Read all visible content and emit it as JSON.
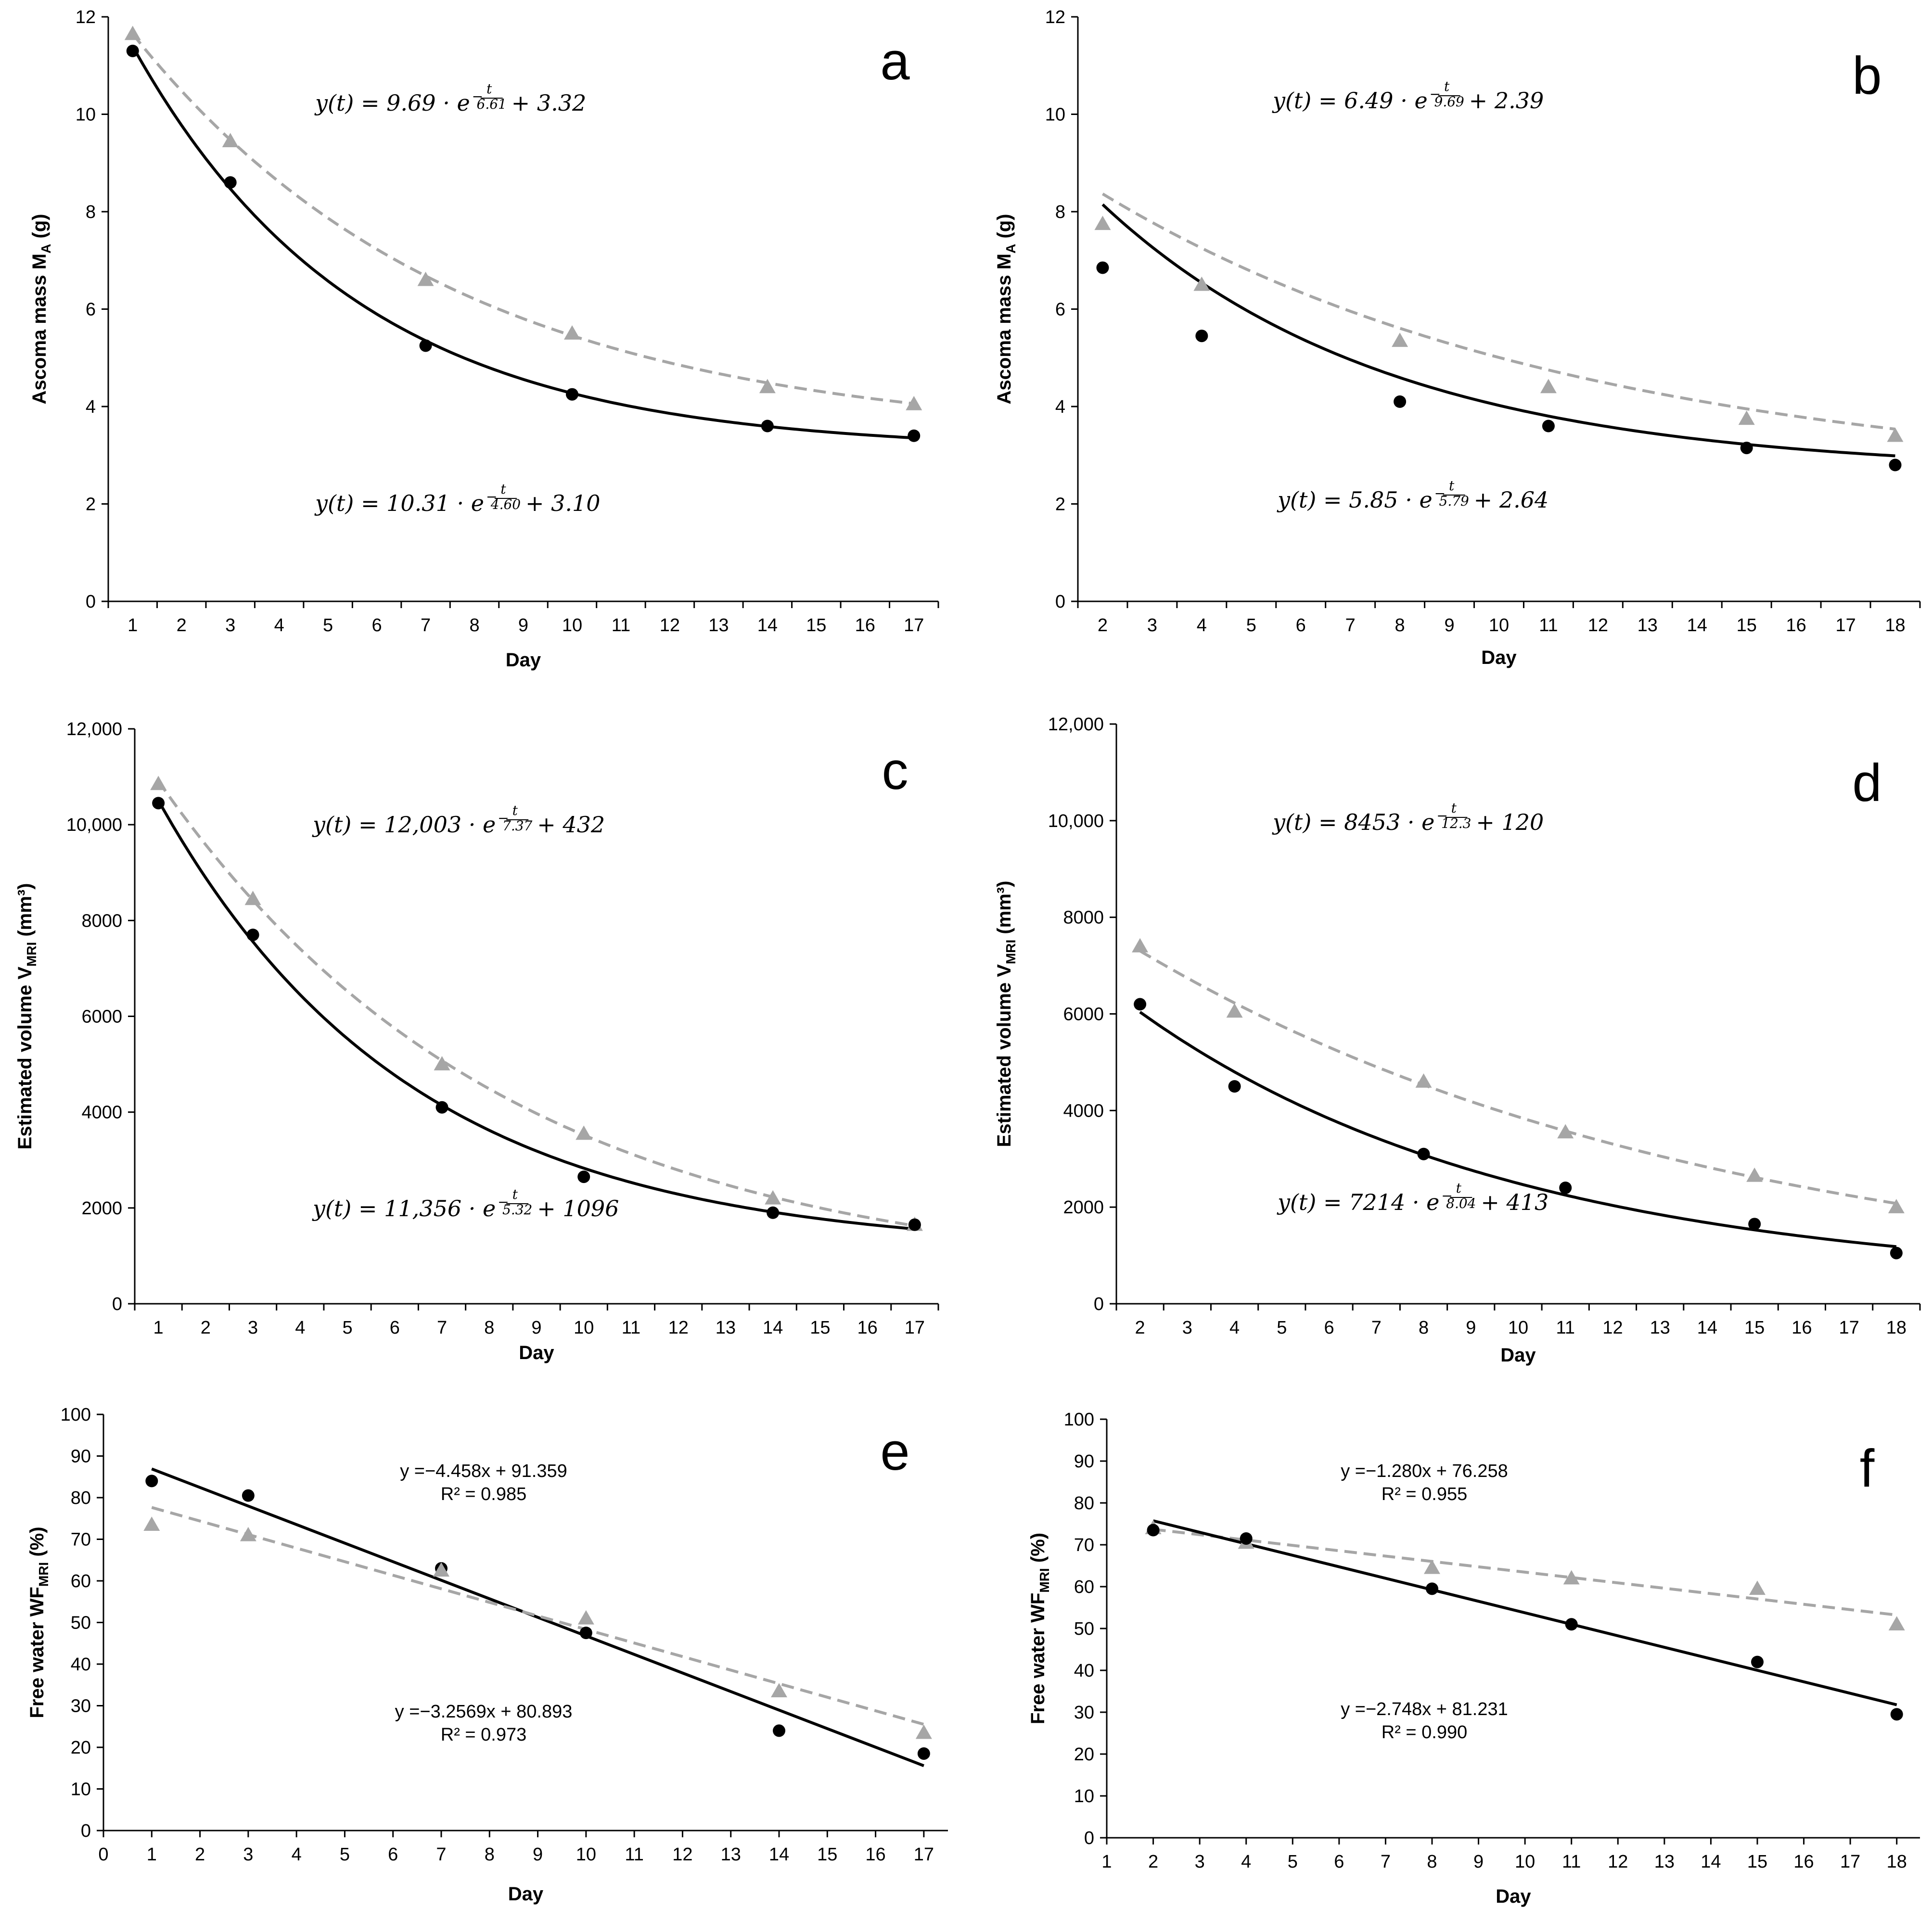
{
  "chart_data": [
    {
      "id": "a",
      "type": "scatter",
      "panel_letter": "a",
      "xlabel": "Day",
      "ylabel": "Ascoma mass M",
      "ylabel_sub": "A",
      "ylabel_suffix": " (g)",
      "xlim": [
        0.5,
        17.5
      ],
      "ylim": [
        0,
        12
      ],
      "xticks": [
        1,
        2,
        3,
        4,
        5,
        6,
        7,
        8,
        9,
        10,
        11,
        12,
        13,
        14,
        15,
        16,
        17
      ],
      "yticks": [
        0,
        2,
        4,
        6,
        8,
        10,
        12
      ],
      "ytick_labels": [
        "0",
        "2",
        "4",
        "6",
        "8",
        "10",
        "12"
      ],
      "series": [
        {
          "marker": "triangle",
          "color": "#a6a6a6",
          "line": "dashed",
          "x": [
            1,
            3,
            7,
            10,
            14,
            17
          ],
          "y": [
            11.65,
            9.45,
            6.6,
            5.5,
            4.4,
            4.05
          ],
          "fit": {
            "kind": "exp",
            "a": 9.69,
            "tau": 6.61,
            "c": 3.32
          },
          "equation": {
            "prefix": "y(t) =  9.69 · e",
            "exp_num": "t",
            "exp_den": "6.61",
            "suffix": "+ 3.32"
          }
        },
        {
          "marker": "circle",
          "color": "#000000",
          "line": "solid",
          "x": [
            1,
            3,
            7,
            10,
            14,
            17
          ],
          "y": [
            11.3,
            8.6,
            5.25,
            4.25,
            3.6,
            3.4
          ],
          "fit": {
            "kind": "exp",
            "a": 10.31,
            "tau": 4.6,
            "c": 3.1
          },
          "equation": {
            "prefix": "y(t) =  10.31 · e",
            "exp_num": "t",
            "exp_den": "4.60",
            "suffix": "+ 3.10"
          }
        }
      ]
    },
    {
      "id": "b",
      "type": "scatter",
      "panel_letter": "b",
      "xlabel": "Day",
      "ylabel": "Ascoma mass M",
      "ylabel_sub": "A",
      "ylabel_suffix": " (g)",
      "xlim": [
        1.5,
        18.5
      ],
      "ylim": [
        0,
        12
      ],
      "xticks": [
        2,
        3,
        4,
        5,
        6,
        7,
        8,
        9,
        10,
        11,
        12,
        13,
        14,
        15,
        16,
        17,
        18
      ],
      "yticks": [
        0,
        2,
        4,
        6,
        8,
        10,
        12
      ],
      "ytick_labels": [
        "0",
        "2",
        "4",
        "6",
        "8",
        "10",
        "12"
      ],
      "series": [
        {
          "marker": "triangle",
          "color": "#a6a6a6",
          "line": "dashed",
          "x": [
            2,
            4,
            8,
            11,
            15,
            18
          ],
          "y": [
            7.75,
            6.5,
            5.35,
            4.4,
            3.75,
            3.4
          ],
          "fit": {
            "kind": "exp",
            "a": 6.49,
            "tau": 9.69,
            "c": 2.39,
            "t0": 1.2
          },
          "equation": {
            "prefix": "y(t) =  6.49 · e",
            "exp_num": "t",
            "exp_den": "9.69",
            "suffix": "+ 2.39"
          }
        },
        {
          "marker": "circle",
          "color": "#000000",
          "line": "solid",
          "x": [
            2,
            4,
            8,
            11,
            15,
            18
          ],
          "y": [
            6.85,
            5.45,
            4.1,
            3.6,
            3.15,
            2.8
          ],
          "fit": {
            "kind": "exp",
            "a": 5.85,
            "tau": 5.79,
            "c": 2.64,
            "t0": 1.65
          },
          "equation": {
            "prefix": "y(t) =  5.85 · e",
            "exp_num": "t",
            "exp_den": "5.79",
            "suffix": "+ 2.64"
          }
        }
      ]
    },
    {
      "id": "c",
      "type": "scatter",
      "panel_letter": "c",
      "xlabel": "Day",
      "ylabel": "Estimated volume V",
      "ylabel_sub": "MRI",
      "ylabel_suffix": " (mm³)",
      "xlim": [
        0.5,
        17.5
      ],
      "ylim": [
        0,
        12000
      ],
      "xticks": [
        1,
        2,
        3,
        4,
        5,
        6,
        7,
        8,
        9,
        10,
        11,
        12,
        13,
        14,
        15,
        16,
        17
      ],
      "yticks": [
        0,
        2000,
        4000,
        6000,
        8000,
        10000,
        12000
      ],
      "ytick_labels": [
        "0",
        "2000",
        "4000",
        "6000",
        "8000",
        "10,000",
        "12,000"
      ],
      "series": [
        {
          "marker": "triangle",
          "color": "#a6a6a6",
          "line": "dashed",
          "x": [
            1,
            3,
            7,
            10,
            14,
            17
          ],
          "y": [
            10850,
            8450,
            5000,
            3550,
            2200,
            1650
          ],
          "fit": {
            "kind": "exp",
            "a": 12003,
            "tau": 7.37,
            "c": 432
          },
          "equation": {
            "prefix": "y(t) = 12,003 · e",
            "exp_num": "t",
            "exp_den": "7.37",
            "suffix": "+ 432"
          }
        },
        {
          "marker": "circle",
          "color": "#000000",
          "line": "solid",
          "x": [
            1,
            3,
            7,
            10,
            14,
            17
          ],
          "y": [
            10450,
            7700,
            4100,
            2650,
            1900,
            1650
          ],
          "fit": {
            "kind": "exp",
            "a": 11356,
            "tau": 5.32,
            "c": 1096
          },
          "equation": {
            "prefix": "y(t) = 11,356 · e",
            "exp_num": "t",
            "exp_den": "5.32",
            "suffix": "+ 1096"
          }
        }
      ]
    },
    {
      "id": "d",
      "type": "scatter",
      "panel_letter": "d",
      "xlabel": "Day",
      "ylabel": "Estimated volume V",
      "ylabel_sub": "MRI",
      "ylabel_suffix": " (mm³)",
      "xlim": [
        1.5,
        18.5
      ],
      "ylim": [
        0,
        12000
      ],
      "xticks": [
        2,
        3,
        4,
        5,
        6,
        7,
        8,
        9,
        10,
        11,
        12,
        13,
        14,
        15,
        16,
        17,
        18
      ],
      "yticks": [
        0,
        2000,
        4000,
        6000,
        8000,
        10000,
        12000
      ],
      "ytick_labels": [
        "0",
        "2000",
        "4000",
        "6000",
        "8000",
        "10,000",
        "12,000"
      ],
      "series": [
        {
          "marker": "triangle",
          "color": "#a6a6a6",
          "line": "dashed",
          "x": [
            2,
            4,
            8,
            11,
            15,
            18
          ],
          "y": [
            7400,
            6050,
            4600,
            3550,
            2650,
            2000
          ],
          "fit": {
            "kind": "exp",
            "a": 8453,
            "tau": 12.3,
            "c": 120
          },
          "equation": {
            "prefix": "y(t) =  8453 · e",
            "exp_num": "t",
            "exp_den": "12.3",
            "suffix": "+ 120"
          }
        },
        {
          "marker": "circle",
          "color": "#000000",
          "line": "solid",
          "x": [
            2,
            4,
            8,
            11,
            15,
            18
          ],
          "y": [
            6200,
            4500,
            3100,
            2400,
            1650,
            1050
          ],
          "fit": {
            "kind": "exp",
            "a": 7214,
            "tau": 8.04,
            "c": 413
          },
          "equation": {
            "prefix": "y(t) =  7214 · e",
            "exp_num": "t",
            "exp_den": "8.04",
            "suffix": "+ 413"
          }
        }
      ]
    },
    {
      "id": "e",
      "type": "scatter",
      "panel_letter": "e",
      "xlabel": "Day",
      "ylabel": "Free water WF",
      "ylabel_sub": "MRI",
      "ylabel_suffix": " (%)",
      "xlim": [
        0,
        17.5
      ],
      "ylim": [
        0,
        100
      ],
      "xticks": [
        0,
        1,
        2,
        3,
        4,
        5,
        6,
        7,
        8,
        9,
        10,
        11,
        12,
        13,
        14,
        15,
        16,
        17
      ],
      "yticks": [
        0,
        10,
        20,
        30,
        40,
        50,
        60,
        70,
        80,
        90,
        100
      ],
      "ytick_labels": [
        "0",
        "10",
        "20",
        "30",
        "40",
        "50",
        "60",
        "70",
        "80",
        "90",
        "100"
      ],
      "series": [
        {
          "marker": "circle",
          "color": "#000000",
          "line": "solid",
          "x": [
            1,
            3,
            7,
            10,
            14,
            17
          ],
          "y": [
            84,
            80.5,
            63,
            47.5,
            24,
            18.5
          ],
          "fit": {
            "kind": "lin",
            "m": -4.458,
            "b": 91.359,
            "x0": 1,
            "x1": 17
          },
          "equation": {
            "line1": "y =−4.458x + 91.359",
            "line2": "R² = 0.985"
          }
        },
        {
          "marker": "triangle",
          "color": "#a6a6a6",
          "line": "dashed",
          "x": [
            1,
            3,
            7,
            10,
            14,
            17
          ],
          "y": [
            73.5,
            71,
            62.5,
            51,
            33.5,
            23.5
          ],
          "fit": {
            "kind": "lin",
            "m": -3.2569,
            "b": 80.893,
            "x0": 1,
            "x1": 17
          },
          "equation": {
            "line1": "y =−3.2569x + 80.893",
            "line2": "R² = 0.973"
          }
        }
      ]
    },
    {
      "id": "f",
      "type": "scatter",
      "panel_letter": "f",
      "xlabel": "Day",
      "ylabel": "Free water WF",
      "ylabel_sub": "MRI",
      "ylabel_suffix": " (%)",
      "xlim": [
        1,
        18.5
      ],
      "ylim": [
        0,
        100
      ],
      "xticks": [
        1,
        2,
        3,
        4,
        5,
        6,
        7,
        8,
        9,
        10,
        11,
        12,
        13,
        14,
        15,
        16,
        17,
        18
      ],
      "yticks": [
        0,
        10,
        20,
        30,
        40,
        50,
        60,
        70,
        80,
        90,
        100
      ],
      "ytick_labels": [
        "0",
        "10",
        "20",
        "30",
        "40",
        "50",
        "60",
        "70",
        "80",
        "90",
        "100"
      ],
      "series": [
        {
          "marker": "triangle",
          "color": "#a6a6a6",
          "line": "dashed",
          "x": [
            2,
            4,
            8,
            11,
            15,
            18
          ],
          "y": [
            74,
            70.5,
            64.5,
            62,
            59.5,
            51
          ],
          "fit": {
            "kind": "lin",
            "m": -1.28,
            "b": 76.258,
            "x0": 2,
            "x1": 18
          },
          "equation": {
            "line1": "y =−1.280x + 76.258",
            "line2": "R² = 0.955"
          }
        },
        {
          "marker": "circle",
          "color": "#000000",
          "line": "solid",
          "x": [
            2,
            4,
            8,
            11,
            15,
            18
          ],
          "y": [
            73.5,
            71.5,
            59.5,
            51,
            42,
            29.5
          ],
          "fit": {
            "kind": "lin",
            "m": -2.748,
            "b": 81.231,
            "x0": 2,
            "x1": 18
          },
          "equation": {
            "line1": "y =−2.748x + 81.231",
            "line2": "R² = 0.990"
          }
        }
      ]
    }
  ]
}
